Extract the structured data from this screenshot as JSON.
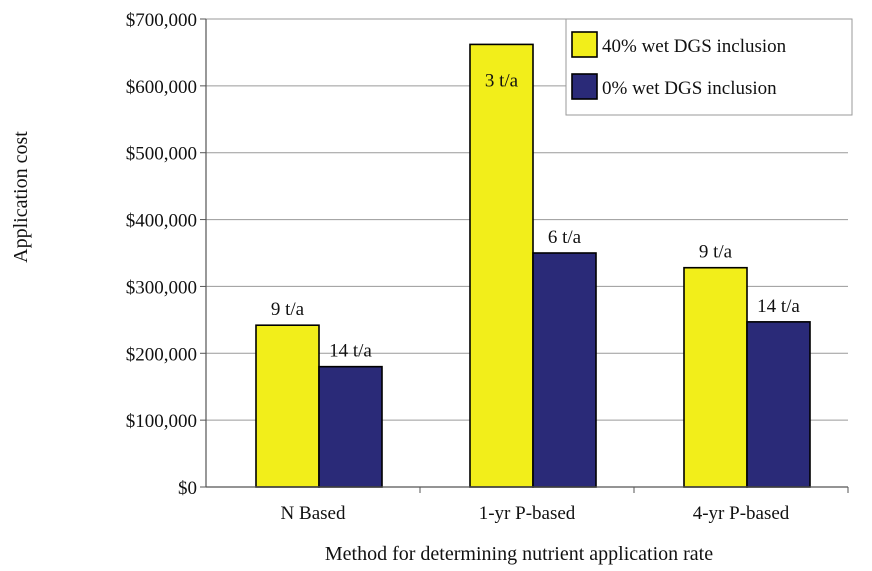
{
  "chart_data": {
    "type": "bar",
    "title": "",
    "xlabel": "Method for determining nutrient application rate",
    "ylabel": "Application cost",
    "categories": [
      "N Based",
      "1-yr P-based",
      "4-yr P-based"
    ],
    "ylim": [
      0,
      700000
    ],
    "yticks": [
      0,
      100000,
      200000,
      300000,
      400000,
      500000,
      600000,
      700000
    ],
    "ytick_labels": [
      "$0",
      "$100,000",
      "$200,000",
      "$300,000",
      "$400,000",
      "$500,000",
      "$600,000",
      "$700,000"
    ],
    "grid": true,
    "legend_position": "top-right",
    "series": [
      {
        "name": "40% wet DGS inclusion",
        "color": "#f2ee1a",
        "values": [
          242000,
          662000,
          328000
        ],
        "labels": [
          "9 t/a",
          "3 t/a",
          "9 t/a"
        ]
      },
      {
        "name": "0% wet DGS inclusion",
        "color": "#2a2a78",
        "values": [
          180000,
          350000,
          247000
        ],
        "labels": [
          "14 t/a",
          "6 t/a",
          "14 t/a"
        ]
      }
    ]
  }
}
